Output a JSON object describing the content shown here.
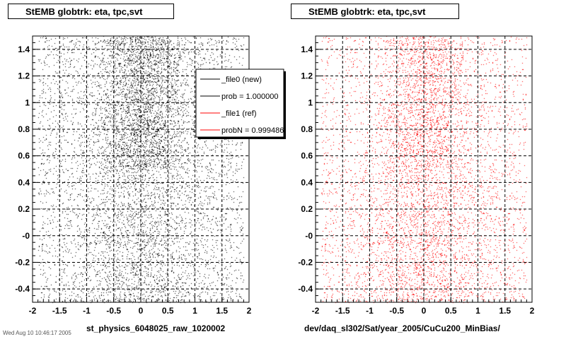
{
  "chart_data": [
    {
      "type": "scatter",
      "title": "StEMB globtrk: eta, tpc,svt",
      "xlabel": "st_physics_6048025_raw_1020002",
      "ylabel": "",
      "xlim": [
        -2,
        2
      ],
      "ylim": [
        -0.5,
        1.5
      ],
      "xticks": [
        "-2",
        "-1.5",
        "-1",
        "-0.5",
        "0",
        "0.5",
        "1",
        "1.5",
        "2"
      ],
      "yticks": [
        "-0.4",
        "-0.2",
        "-0",
        "0.2",
        "0.4",
        "0.6",
        "0.8",
        "1",
        "1.2",
        "1.4"
      ],
      "grid": true,
      "marker_color": "#000000",
      "density": {
        "x_range": [
          -1.9,
          1.9
        ],
        "dense_region_y": [
          0.5,
          1.5
        ],
        "sparse_region_y": [
          -0.5,
          0.5
        ],
        "dense_core_x": [
          -0.5,
          0.5
        ]
      },
      "legend": {
        "placement": "top-right",
        "entries": [
          {
            "label": "_file0 (new)",
            "color": "#000000"
          },
          {
            "label": "prob = 1.000000",
            "color": "#000000"
          },
          {
            "label": "_file1 (ref)",
            "color": "#ff0000"
          },
          {
            "label": "probN = 0.999486",
            "color": "#ff0000"
          }
        ]
      }
    },
    {
      "type": "scatter",
      "title": "StEMB globtrk: eta, tpc,svt",
      "xlabel": "dev/daq_sl302/Sat/year_2005/CuCu200_MinBias/",
      "ylabel": "",
      "xlim": [
        -2,
        2
      ],
      "ylim": [
        -0.5,
        1.5
      ],
      "xticks": [
        "-2",
        "-1.5",
        "-1",
        "-0.5",
        "0",
        "0.5",
        "1",
        "1.5",
        "2"
      ],
      "yticks": [
        "-0.4",
        "-0.2",
        "-0",
        "0.2",
        "0.4",
        "0.6",
        "0.8",
        "1",
        "1.2",
        "1.4"
      ],
      "grid": true,
      "marker_color": "#ff0000",
      "density": {
        "x_range": [
          -1.9,
          1.9
        ],
        "dense_region_y": [
          0.5,
          1.5
        ],
        "sparse_region_y": [
          -0.5,
          0.5
        ],
        "dense_core_x": [
          -0.5,
          0.5
        ]
      }
    }
  ],
  "footer": "Wed Aug 10 10:46:17 2005"
}
